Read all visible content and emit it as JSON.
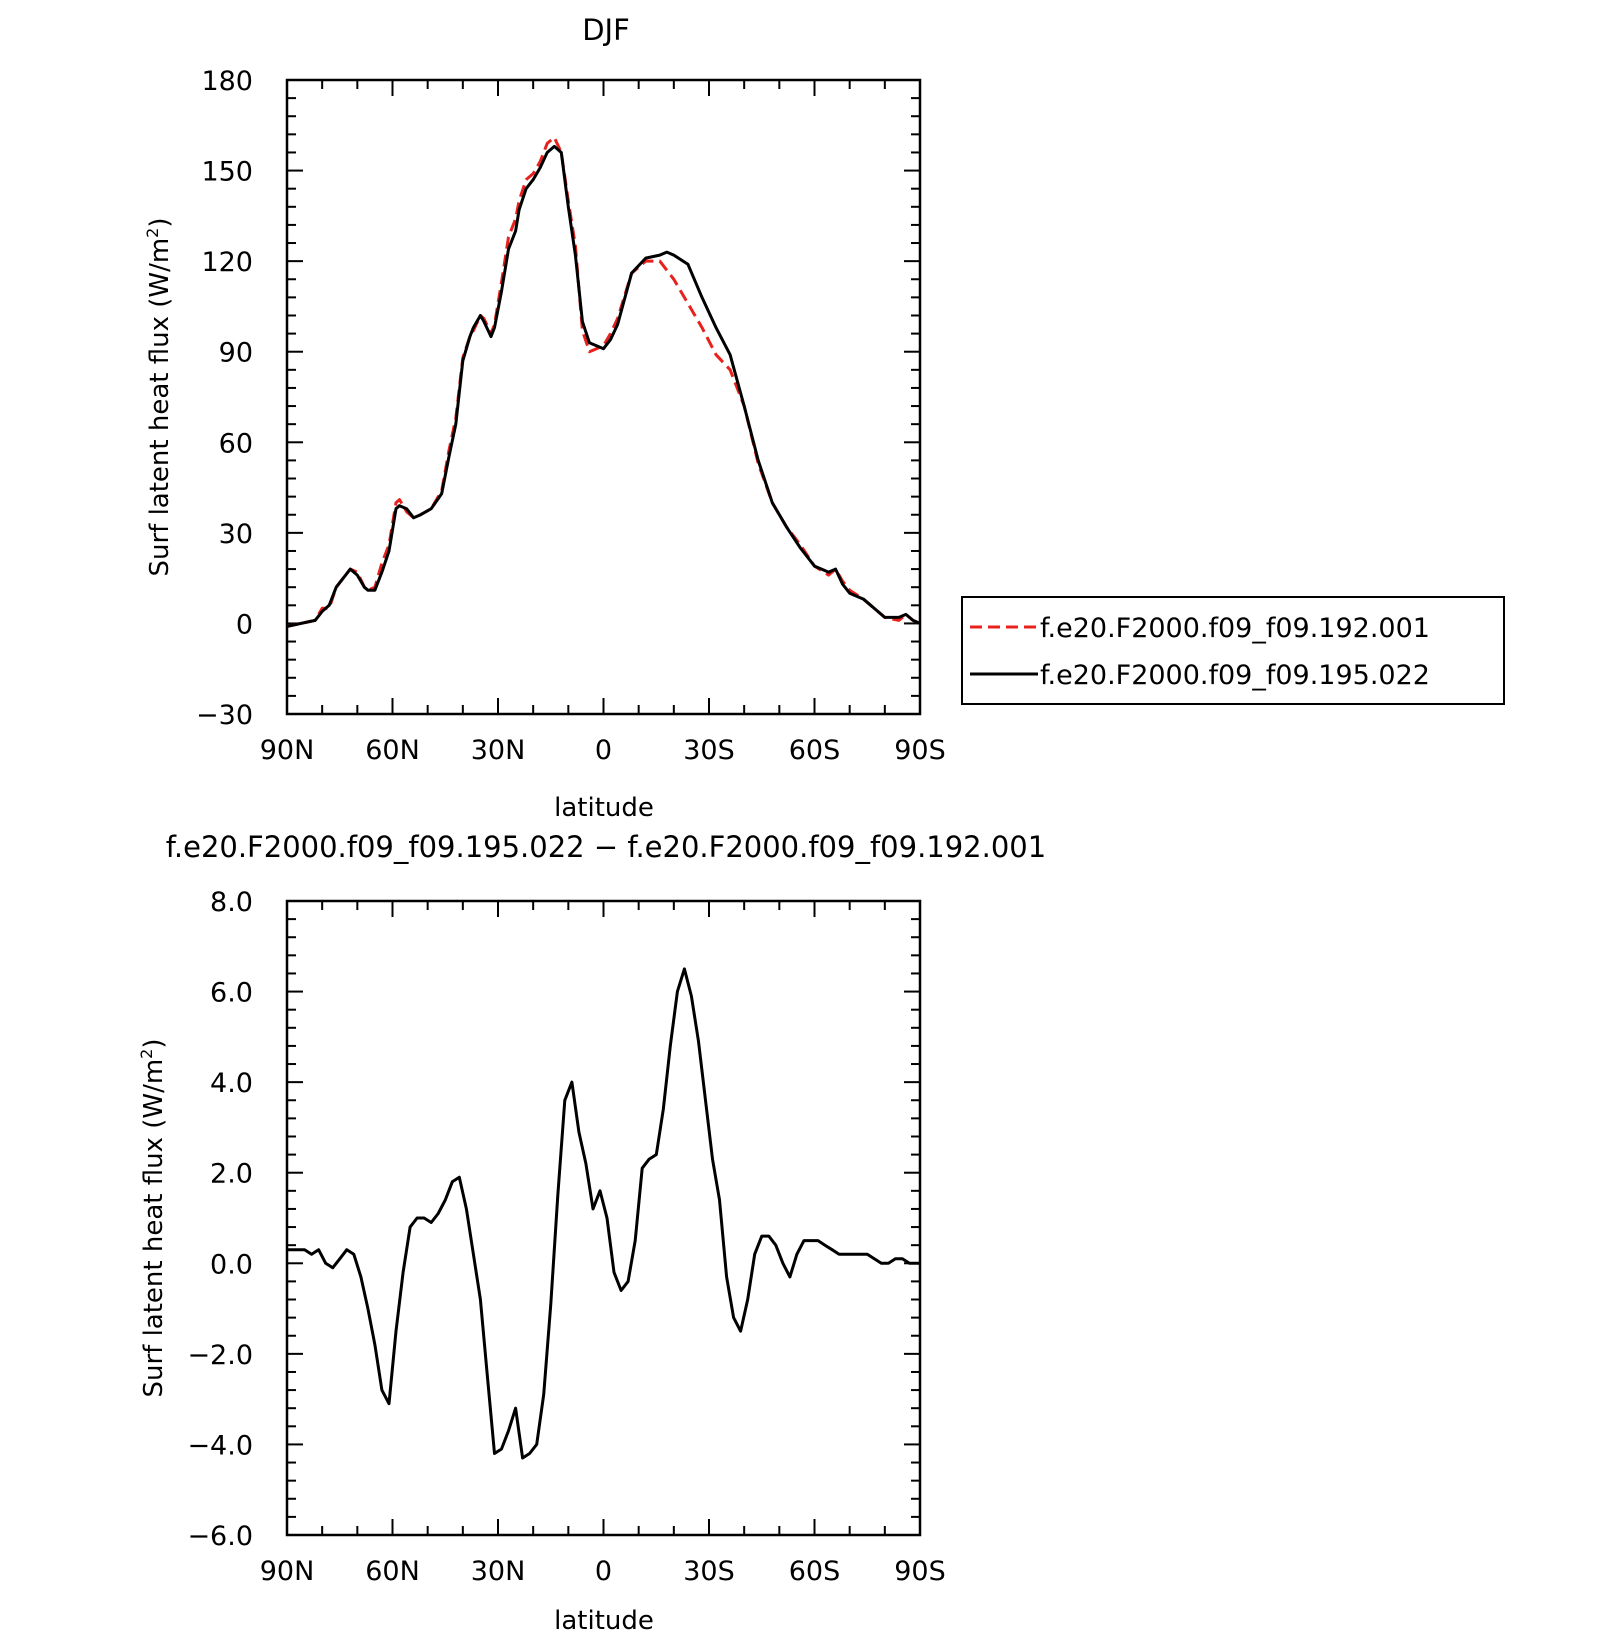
{
  "chart_data": [
    {
      "type": "line",
      "title": "DJF",
      "xlabel": "latitude",
      "ylabel_main": "Surf latent heat flux (W/m",
      "ylabel_sup": "2",
      "ylabel_close": ")",
      "xlim": [
        90,
        -90
      ],
      "ylim": [
        -30,
        180
      ],
      "x_ticks": [
        {
          "value": 90,
          "label": "90N"
        },
        {
          "value": 60,
          "label": "60N"
        },
        {
          "value": 30,
          "label": "30N"
        },
        {
          "value": 0,
          "label": "0"
        },
        {
          "value": -30,
          "label": "30S"
        },
        {
          "value": -60,
          "label": "60S"
        },
        {
          "value": -90,
          "label": "90S"
        }
      ],
      "y_ticks": [
        {
          "value": 180,
          "label": "180"
        },
        {
          "value": 150,
          "label": "150"
        },
        {
          "value": 120,
          "label": "120"
        },
        {
          "value": 90,
          "label": "90"
        },
        {
          "value": 60,
          "label": "60"
        },
        {
          "value": 30,
          "label": "30"
        },
        {
          "value": 0,
          "label": "0"
        },
        {
          "value": -30,
          "label": "−30"
        }
      ],
      "legend_position": "right",
      "series": [
        {
          "name": "f.e20.F2000.f09_f09.192.001",
          "color": "#e8211d",
          "dash": true,
          "x": [
            90,
            86,
            82,
            80,
            78,
            76,
            72,
            70,
            68,
            67,
            65,
            63,
            61,
            59,
            58,
            56,
            54,
            52,
            49,
            46,
            44,
            42,
            40,
            38,
            37,
            35,
            34,
            32,
            31,
            29,
            27,
            25,
            24,
            22,
            20,
            18,
            16,
            14,
            12,
            10,
            8,
            6,
            4,
            2,
            0,
            -2,
            -4,
            -8,
            -12,
            -16,
            -20,
            -24,
            -28,
            -32,
            -36,
            -40,
            -44,
            -48,
            -52,
            -56,
            -60,
            -64,
            -66,
            -68,
            -70,
            -74,
            -78,
            -80,
            -84,
            -86,
            -88,
            -90
          ],
          "y": [
            -1,
            0,
            1,
            5,
            5,
            12,
            18,
            17,
            12,
            11,
            12,
            20,
            26,
            40,
            41,
            37,
            35,
            36,
            38,
            44,
            57,
            68,
            88,
            95,
            97,
            102,
            101,
            96,
            99,
            113,
            128,
            134,
            140,
            147,
            149,
            153,
            159,
            161,
            156,
            140,
            125,
            97,
            90,
            91,
            92,
            96,
            101,
            116,
            120,
            120,
            114,
            106,
            98,
            89,
            84,
            72,
            53,
            40,
            32,
            26,
            19,
            16,
            18,
            14,
            11,
            8,
            4,
            2,
            1,
            3,
            1,
            0
          ]
        },
        {
          "name": "f.e20.F2000.f09_f09.195.022",
          "color": "#000000",
          "dash": false,
          "x": [
            90,
            86,
            82,
            80,
            78,
            76,
            72,
            70,
            68,
            67,
            65,
            63,
            61,
            59,
            58,
            56,
            54,
            52,
            49,
            46,
            44,
            42,
            40,
            38,
            37,
            35,
            34,
            32,
            31,
            29,
            27,
            25,
            24,
            22,
            20,
            18,
            16,
            14,
            12,
            10,
            8,
            6,
            4,
            2,
            0,
            -2,
            -4,
            -8,
            -12,
            -16,
            -18,
            -20,
            -24,
            -28,
            -32,
            -36,
            -40,
            -44,
            -48,
            -52,
            -56,
            -60,
            -64,
            -66,
            -68,
            -70,
            -74,
            -78,
            -80,
            -84,
            -86,
            -88,
            -90
          ],
          "y": [
            -1,
            0,
            1,
            4,
            6,
            12,
            18,
            16,
            12,
            11,
            11,
            17,
            24,
            38,
            39,
            38,
            35,
            36,
            38,
            43,
            55,
            66,
            87,
            95,
            98,
            102,
            100,
            95,
            98,
            110,
            124,
            130,
            137,
            144,
            147,
            151,
            156,
            158,
            156,
            138,
            122,
            100,
            93,
            92,
            91,
            94,
            99,
            116,
            121,
            122,
            123,
            122,
            119,
            108,
            98,
            89,
            72,
            54,
            40,
            32,
            25,
            19,
            17,
            18,
            13,
            10,
            8,
            4,
            2,
            2,
            3,
            1,
            0
          ]
        }
      ]
    },
    {
      "type": "line",
      "title": "f.e20.F2000.f09_f09.195.022 − f.e20.F2000.f09_f09.192.001",
      "xlabel": "latitude",
      "ylabel_main": "Surf latent heat flux (W/m",
      "ylabel_sup": "2",
      "ylabel_close": ")",
      "xlim": [
        90,
        -90
      ],
      "ylim": [
        -6,
        8
      ],
      "x_ticks": [
        {
          "value": 90,
          "label": "90N"
        },
        {
          "value": 60,
          "label": "60N"
        },
        {
          "value": 30,
          "label": "30N"
        },
        {
          "value": 0,
          "label": "0"
        },
        {
          "value": -30,
          "label": "30S"
        },
        {
          "value": -60,
          "label": "60S"
        },
        {
          "value": -90,
          "label": "90S"
        }
      ],
      "y_ticks": [
        {
          "value": 8,
          "label": "8.0"
        },
        {
          "value": 6,
          "label": "6.0"
        },
        {
          "value": 4,
          "label": "4.0"
        },
        {
          "value": 2,
          "label": "2.0"
        },
        {
          "value": 0,
          "label": "0.0"
        },
        {
          "value": -2,
          "label": "−2.0"
        },
        {
          "value": -4,
          "label": "−4.0"
        },
        {
          "value": -6,
          "label": "−6.0"
        }
      ],
      "series": [
        {
          "name": "",
          "color": "#000000",
          "dash": false,
          "x": [
            90,
            88,
            85,
            83,
            81,
            79,
            77,
            75,
            73,
            71,
            69,
            67,
            65,
            63,
            61,
            59,
            57,
            55,
            53,
            51,
            49,
            47,
            45,
            43,
            41,
            39,
            37,
            35,
            33,
            31,
            29,
            27,
            25,
            23,
            21,
            19,
            17,
            15,
            13,
            11,
            9,
            7,
            5,
            3,
            1,
            -1,
            -3,
            -5,
            -7,
            -9,
            -11,
            -13,
            -15,
            -17,
            -19,
            -21,
            -23,
            -25,
            -27,
            -29,
            -31,
            -33,
            -35,
            -37,
            -39,
            -41,
            -43,
            -45,
            -47,
            -49,
            -51,
            -53,
            -55,
            -57,
            -59,
            -61,
            -63,
            -65,
            -67,
            -69,
            -71,
            -73,
            -75,
            -77,
            -79,
            -81,
            -83,
            -85,
            -87,
            -90
          ],
          "y": [
            0.3,
            0.3,
            0.3,
            0.2,
            0.3,
            0.0,
            -0.1,
            0.1,
            0.3,
            0.2,
            -0.3,
            -1.0,
            -1.8,
            -2.8,
            -3.1,
            -1.5,
            -0.2,
            0.8,
            1.0,
            1.0,
            0.9,
            1.1,
            1.4,
            1.8,
            1.9,
            1.2,
            0.2,
            -0.8,
            -2.5,
            -4.2,
            -4.1,
            -3.7,
            -3.2,
            -4.3,
            -4.2,
            -4.0,
            -2.9,
            -0.9,
            1.5,
            3.6,
            4.0,
            2.9,
            2.2,
            1.2,
            1.6,
            1.0,
            -0.2,
            -0.6,
            -0.4,
            0.5,
            2.1,
            2.3,
            2.4,
            3.4,
            4.8,
            6.0,
            6.5,
            5.9,
            4.9,
            3.6,
            2.3,
            1.4,
            -0.3,
            -1.2,
            -1.5,
            -0.8,
            0.2,
            0.6,
            0.6,
            0.4,
            0.0,
            -0.3,
            0.2,
            0.5,
            0.5,
            0.5,
            0.4,
            0.3,
            0.2,
            0.2,
            0.2,
            0.2,
            0.2,
            0.1,
            0.0,
            0.0,
            0.1,
            0.1,
            0.0,
            0.0
          ]
        }
      ]
    }
  ]
}
